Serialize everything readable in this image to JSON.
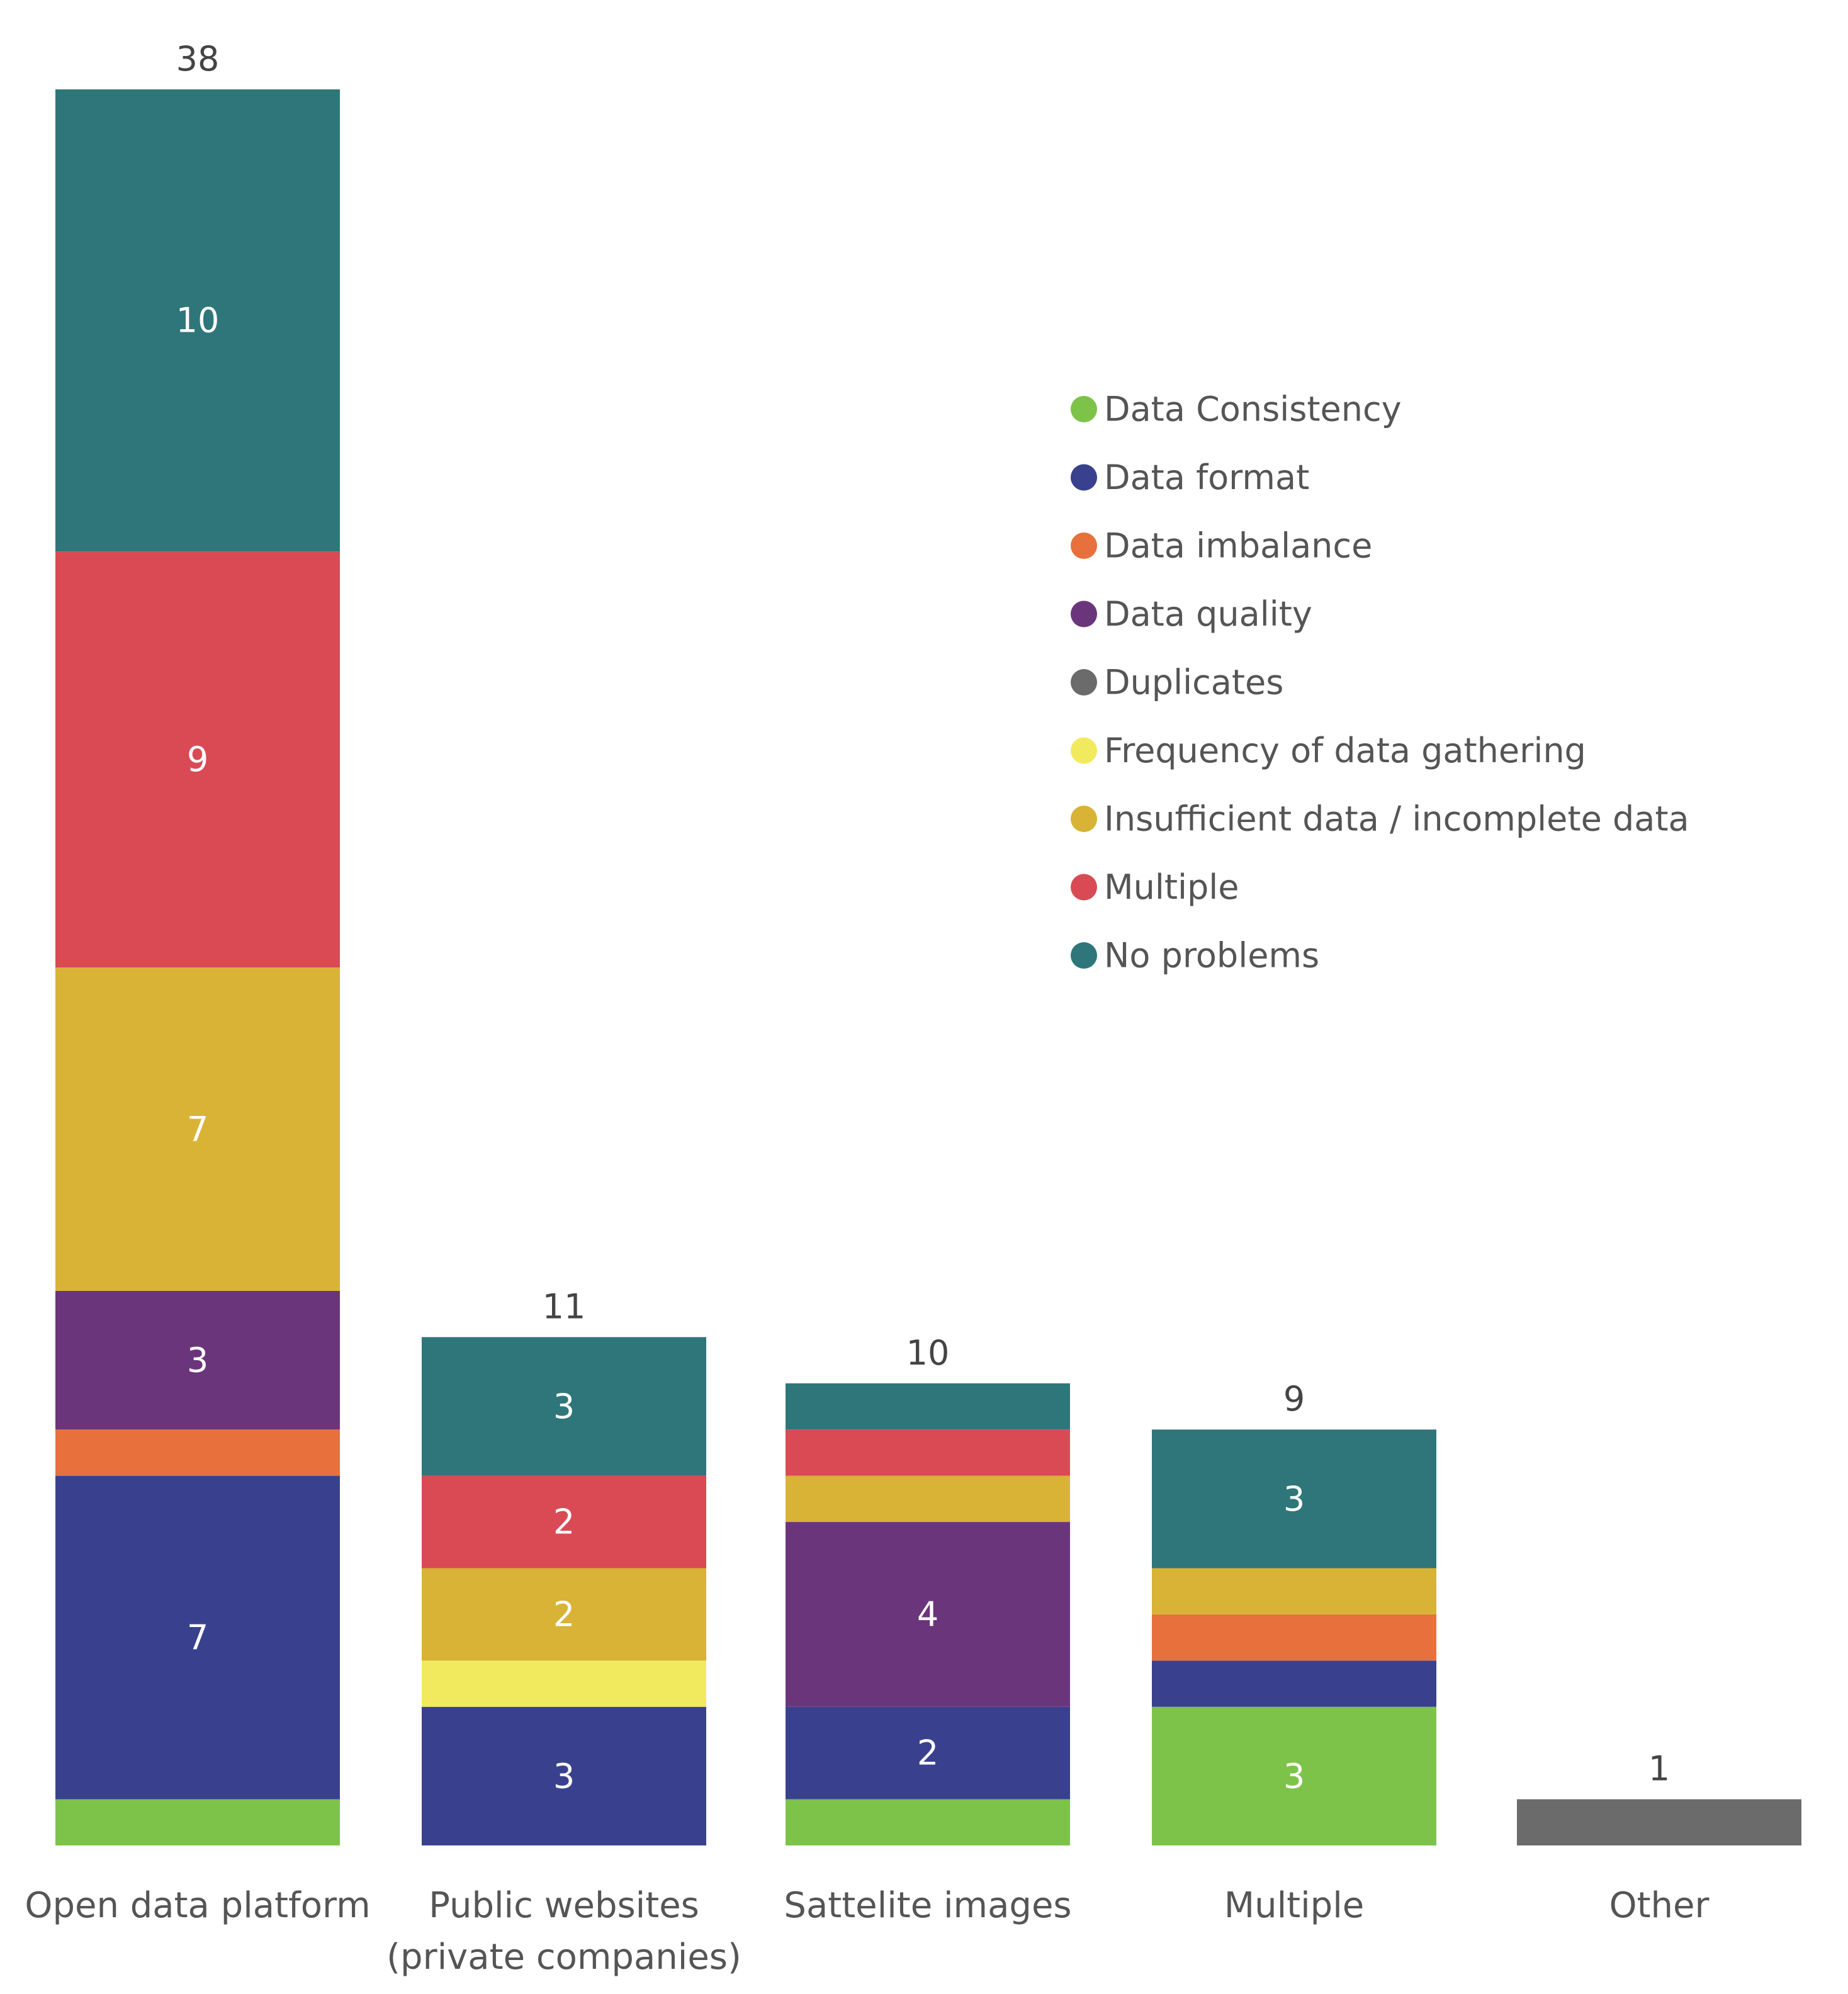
{
  "chart_data": {
    "type": "bar",
    "stacked": true,
    "title": "",
    "xlabel": "",
    "ylabel": "",
    "ylim": [
      0,
      38
    ],
    "grid": false,
    "legend_position": "right",
    "categories": [
      [
        "Open data platform"
      ],
      [
        "Public websites",
        "(private companies)"
      ],
      [
        "Sattelite images"
      ],
      [
        "Multiple"
      ],
      [
        "Other"
      ]
    ],
    "totals": [
      38,
      11,
      10,
      9,
      1
    ],
    "series": [
      {
        "name": "Data Consistency",
        "color": "#7DC34A",
        "values": [
          1,
          0,
          1,
          3,
          0
        ]
      },
      {
        "name": "Data format",
        "color": "#39418F",
        "values": [
          7,
          3,
          2,
          1,
          0
        ]
      },
      {
        "name": "Data imbalance",
        "color": "#E8703D",
        "values": [
          1,
          0,
          0,
          1,
          0
        ]
      },
      {
        "name": "Data quality",
        "color": "#6B357C",
        "values": [
          3,
          0,
          4,
          0,
          0
        ]
      },
      {
        "name": "Duplicates",
        "color": "#6B6B6B",
        "values": [
          0,
          0,
          0,
          0,
          1
        ]
      },
      {
        "name": "Frequency of data gathering",
        "color": "#F2EA5E",
        "values": [
          0,
          1,
          0,
          0,
          0
        ]
      },
      {
        "name": "Insufficient data / incomplete data",
        "color": "#D8B335",
        "values": [
          7,
          2,
          1,
          1,
          0
        ]
      },
      {
        "name": "Multiple",
        "color": "#DA4A55",
        "values": [
          9,
          2,
          1,
          0,
          0
        ]
      },
      {
        "name": "No problems",
        "color": "#2E767A",
        "values": [
          10,
          3,
          1,
          3,
          0
        ]
      }
    ],
    "data_labels_min_value": 2
  }
}
